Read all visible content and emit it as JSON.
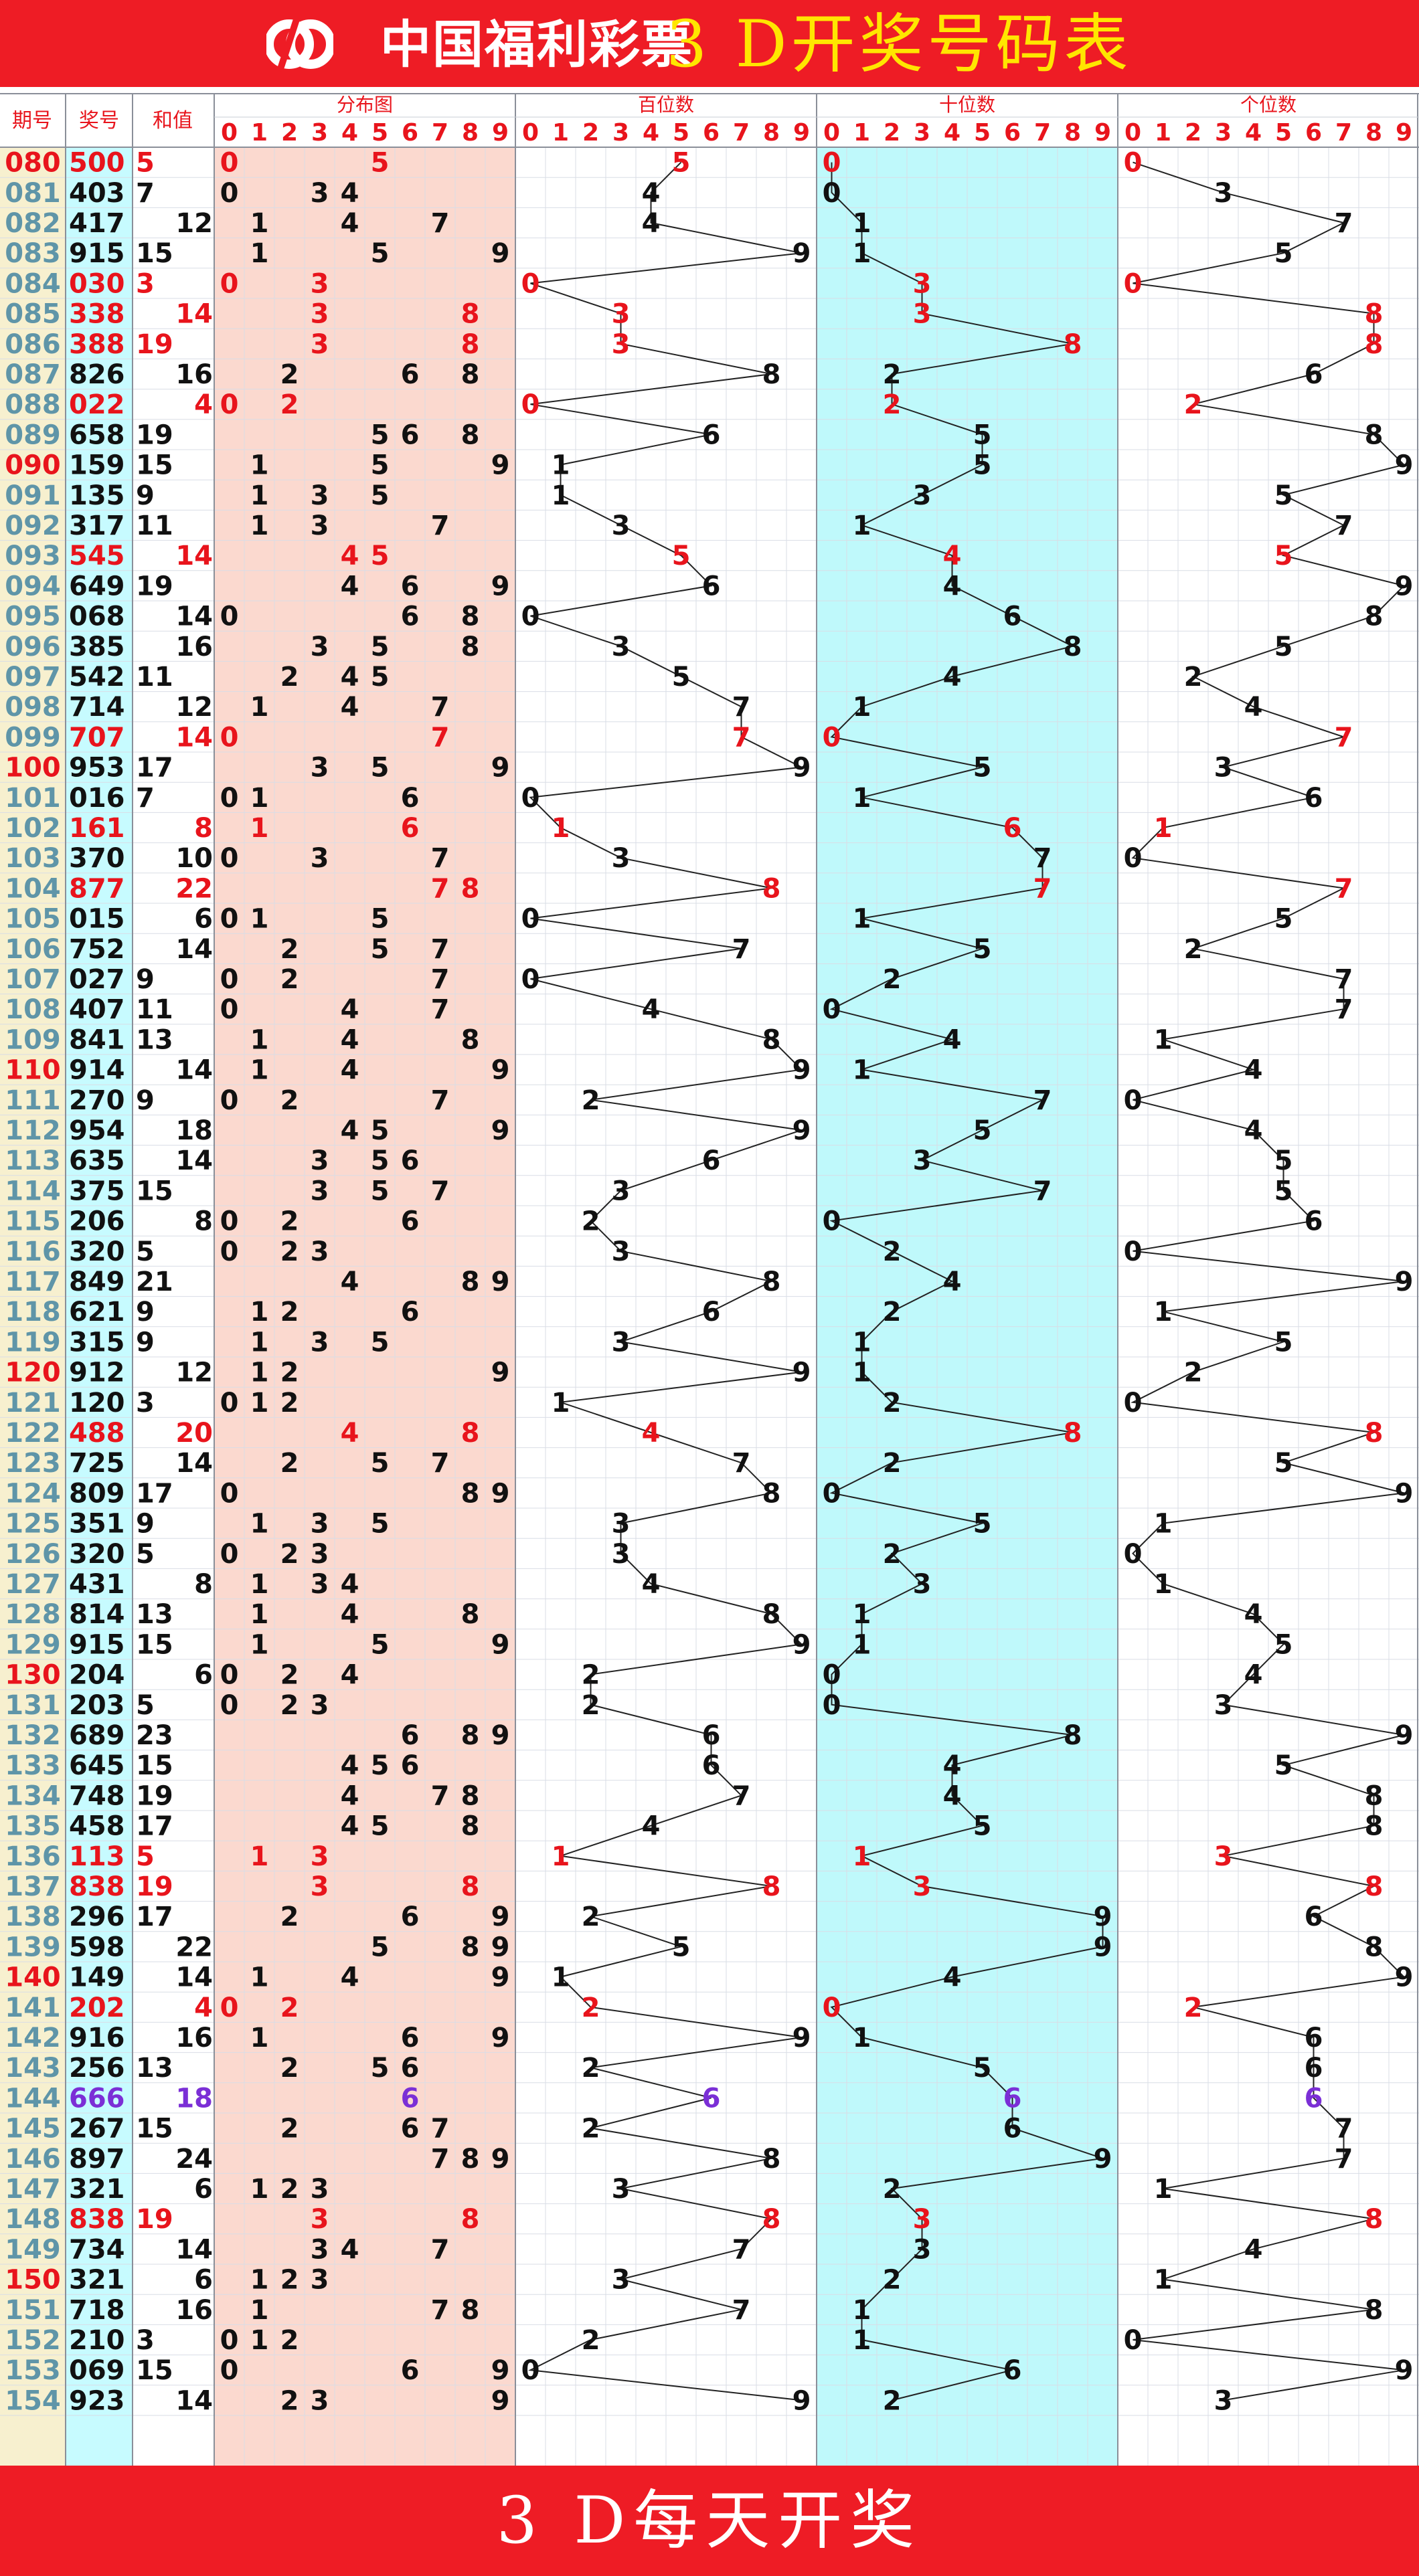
{
  "header": {
    "logo_text": "中国福利彩票",
    "title": "3 D开奖号码表"
  },
  "footer": {
    "text": "3 D每天开奖"
  },
  "columns": {
    "period": "期号",
    "number": "奖号",
    "sum": "和值",
    "distribution": "分布图",
    "hundreds": "百位数",
    "tens": "十位数",
    "units": "个位数",
    "digits": [
      "0",
      "1",
      "2",
      "3",
      "4",
      "5",
      "6",
      "7",
      "8",
      "9"
    ]
  },
  "colors": {
    "header_bg": "#ee1c25",
    "title": "#ffe600",
    "red": "#e8141c",
    "purple": "#7b2fd6",
    "period_text": "#5f95a8",
    "period_bg": "#f7f0cf",
    "number_bg": "#c7fbff",
    "dist_bg": "#fbd9cf",
    "tens_bg": "#bff9fb"
  },
  "chart_data": {
    "type": "table",
    "note_types": {
      "red": "pair or zero-containing highlight",
      "purple": "triple"
    },
    "rows": [
      {
        "period": "080",
        "number": "500",
        "sum": "5",
        "sum_col": "left",
        "style": "red"
      },
      {
        "period": "081",
        "number": "403",
        "sum": "7",
        "sum_col": "left",
        "style": "normal"
      },
      {
        "period": "082",
        "number": "417",
        "sum": "12",
        "sum_col": "right",
        "style": "normal"
      },
      {
        "period": "083",
        "number": "915",
        "sum": "15",
        "sum_col": "left",
        "style": "normal"
      },
      {
        "period": "084",
        "number": "030",
        "sum": "3",
        "sum_col": "left",
        "style": "red"
      },
      {
        "period": "085",
        "number": "338",
        "sum": "14",
        "sum_col": "right",
        "style": "red"
      },
      {
        "period": "086",
        "number": "388",
        "sum": "19",
        "sum_col": "left",
        "style": "red"
      },
      {
        "period": "087",
        "number": "826",
        "sum": "16",
        "sum_col": "right",
        "style": "normal"
      },
      {
        "period": "088",
        "number": "022",
        "sum": "4",
        "sum_col": "right",
        "style": "red"
      },
      {
        "period": "089",
        "number": "658",
        "sum": "19",
        "sum_col": "left",
        "style": "normal"
      },
      {
        "period": "090",
        "number": "159",
        "sum": "15",
        "sum_col": "left",
        "style": "normal"
      },
      {
        "period": "091",
        "number": "135",
        "sum": "9",
        "sum_col": "left",
        "style": "normal"
      },
      {
        "period": "092",
        "number": "317",
        "sum": "11",
        "sum_col": "left",
        "style": "normal"
      },
      {
        "period": "093",
        "number": "545",
        "sum": "14",
        "sum_col": "right",
        "style": "red"
      },
      {
        "period": "094",
        "number": "649",
        "sum": "19",
        "sum_col": "left",
        "style": "normal"
      },
      {
        "period": "095",
        "number": "068",
        "sum": "14",
        "sum_col": "right",
        "style": "normal"
      },
      {
        "period": "096",
        "number": "385",
        "sum": "16",
        "sum_col": "right",
        "style": "normal"
      },
      {
        "period": "097",
        "number": "542",
        "sum": "11",
        "sum_col": "left",
        "style": "normal"
      },
      {
        "period": "098",
        "number": "714",
        "sum": "12",
        "sum_col": "right",
        "style": "normal"
      },
      {
        "period": "099",
        "number": "707",
        "sum": "14",
        "sum_col": "right",
        "style": "red"
      },
      {
        "period": "100",
        "number": "953",
        "sum": "17",
        "sum_col": "left",
        "style": "normal"
      },
      {
        "period": "101",
        "number": "016",
        "sum": "7",
        "sum_col": "left",
        "style": "normal"
      },
      {
        "period": "102",
        "number": "161",
        "sum": "8",
        "sum_col": "right",
        "style": "red"
      },
      {
        "period": "103",
        "number": "370",
        "sum": "10",
        "sum_col": "right",
        "style": "normal"
      },
      {
        "period": "104",
        "number": "877",
        "sum": "22",
        "sum_col": "right",
        "style": "red"
      },
      {
        "period": "105",
        "number": "015",
        "sum": "6",
        "sum_col": "right",
        "style": "normal"
      },
      {
        "period": "106",
        "number": "752",
        "sum": "14",
        "sum_col": "right",
        "style": "normal"
      },
      {
        "period": "107",
        "number": "027",
        "sum": "9",
        "sum_col": "left",
        "style": "normal"
      },
      {
        "period": "108",
        "number": "407",
        "sum": "11",
        "sum_col": "left",
        "style": "normal"
      },
      {
        "period": "109",
        "number": "841",
        "sum": "13",
        "sum_col": "left",
        "style": "normal"
      },
      {
        "period": "110",
        "number": "914",
        "sum": "14",
        "sum_col": "right",
        "style": "normal"
      },
      {
        "period": "111",
        "number": "270",
        "sum": "9",
        "sum_col": "left",
        "style": "normal"
      },
      {
        "period": "112",
        "number": "954",
        "sum": "18",
        "sum_col": "right",
        "style": "normal"
      },
      {
        "period": "113",
        "number": "635",
        "sum": "14",
        "sum_col": "right",
        "style": "normal"
      },
      {
        "period": "114",
        "number": "375",
        "sum": "15",
        "sum_col": "left",
        "style": "normal"
      },
      {
        "period": "115",
        "number": "206",
        "sum": "8",
        "sum_col": "right",
        "style": "normal"
      },
      {
        "period": "116",
        "number": "320",
        "sum": "5",
        "sum_col": "left",
        "style": "normal"
      },
      {
        "period": "117",
        "number": "849",
        "sum": "21",
        "sum_col": "left",
        "style": "normal"
      },
      {
        "period": "118",
        "number": "621",
        "sum": "9",
        "sum_col": "left",
        "style": "normal"
      },
      {
        "period": "119",
        "number": "315",
        "sum": "9",
        "sum_col": "left",
        "style": "normal"
      },
      {
        "period": "120",
        "number": "912",
        "sum": "12",
        "sum_col": "right",
        "style": "normal"
      },
      {
        "period": "121",
        "number": "120",
        "sum": "3",
        "sum_col": "left",
        "style": "normal"
      },
      {
        "period": "122",
        "number": "488",
        "sum": "20",
        "sum_col": "right",
        "style": "red"
      },
      {
        "period": "123",
        "number": "725",
        "sum": "14",
        "sum_col": "right",
        "style": "normal"
      },
      {
        "period": "124",
        "number": "809",
        "sum": "17",
        "sum_col": "left",
        "style": "normal"
      },
      {
        "period": "125",
        "number": "351",
        "sum": "9",
        "sum_col": "left",
        "style": "normal"
      },
      {
        "period": "126",
        "number": "320",
        "sum": "5",
        "sum_col": "left",
        "style": "normal"
      },
      {
        "period": "127",
        "number": "431",
        "sum": "8",
        "sum_col": "right",
        "style": "normal"
      },
      {
        "period": "128",
        "number": "814",
        "sum": "13",
        "sum_col": "left",
        "style": "normal"
      },
      {
        "period": "129",
        "number": "915",
        "sum": "15",
        "sum_col": "left",
        "style": "normal"
      },
      {
        "period": "130",
        "number": "204",
        "sum": "6",
        "sum_col": "right",
        "style": "normal"
      },
      {
        "period": "131",
        "number": "203",
        "sum": "5",
        "sum_col": "left",
        "style": "normal"
      },
      {
        "period": "132",
        "number": "689",
        "sum": "23",
        "sum_col": "left",
        "style": "normal"
      },
      {
        "period": "133",
        "number": "645",
        "sum": "15",
        "sum_col": "left",
        "style": "normal"
      },
      {
        "period": "134",
        "number": "748",
        "sum": "19",
        "sum_col": "left",
        "style": "normal"
      },
      {
        "period": "135",
        "number": "458",
        "sum": "17",
        "sum_col": "left",
        "style": "normal"
      },
      {
        "period": "136",
        "number": "113",
        "sum": "5",
        "sum_col": "left",
        "style": "red"
      },
      {
        "period": "137",
        "number": "838",
        "sum": "19",
        "sum_col": "left",
        "style": "red"
      },
      {
        "period": "138",
        "number": "296",
        "sum": "17",
        "sum_col": "left",
        "style": "normal"
      },
      {
        "period": "139",
        "number": "598",
        "sum": "22",
        "sum_col": "right",
        "style": "normal"
      },
      {
        "period": "140",
        "number": "149",
        "sum": "14",
        "sum_col": "right",
        "style": "normal"
      },
      {
        "period": "141",
        "number": "202",
        "sum": "4",
        "sum_col": "right",
        "style": "red"
      },
      {
        "period": "142",
        "number": "916",
        "sum": "16",
        "sum_col": "right",
        "style": "normal"
      },
      {
        "period": "143",
        "number": "256",
        "sum": "13",
        "sum_col": "left",
        "style": "normal"
      },
      {
        "period": "144",
        "number": "666",
        "sum": "18",
        "sum_col": "right",
        "style": "purple"
      },
      {
        "period": "145",
        "number": "267",
        "sum": "15",
        "sum_col": "left",
        "style": "normal"
      },
      {
        "period": "146",
        "number": "897",
        "sum": "24",
        "sum_col": "right",
        "style": "normal"
      },
      {
        "period": "147",
        "number": "321",
        "sum": "6",
        "sum_col": "right",
        "style": "normal"
      },
      {
        "period": "148",
        "number": "838",
        "sum": "19",
        "sum_col": "left",
        "style": "red"
      },
      {
        "period": "149",
        "number": "734",
        "sum": "14",
        "sum_col": "right",
        "style": "normal"
      },
      {
        "period": "150",
        "number": "321",
        "sum": "6",
        "sum_col": "right",
        "style": "normal"
      },
      {
        "period": "151",
        "number": "718",
        "sum": "16",
        "sum_col": "right",
        "style": "normal"
      },
      {
        "period": "152",
        "number": "210",
        "sum": "3",
        "sum_col": "left",
        "style": "normal"
      },
      {
        "period": "153",
        "number": "069",
        "sum": "15",
        "sum_col": "left",
        "style": "normal"
      },
      {
        "period": "154",
        "number": "923",
        "sum": "14",
        "sum_col": "right",
        "style": "normal"
      }
    ]
  }
}
